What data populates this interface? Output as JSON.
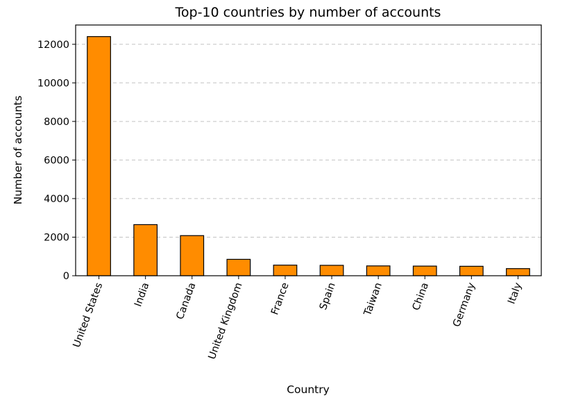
{
  "chart_data": {
    "type": "bar",
    "title": "Top-10 countries by number of accounts",
    "xlabel": "Country",
    "ylabel": "Number of accounts",
    "categories": [
      "United States",
      "India",
      "Canada",
      "United Kingdom",
      "France",
      "Spain",
      "Taiwan",
      "China",
      "Germany",
      "Italy"
    ],
    "values": [
      12400,
      2650,
      2080,
      850,
      550,
      540,
      510,
      500,
      490,
      370
    ],
    "ylim": [
      0,
      13000
    ],
    "yticks": [
      0,
      2000,
      4000,
      6000,
      8000,
      10000,
      12000
    ],
    "ytick_labels": [
      "0",
      "2000",
      "4000",
      "6000",
      "8000",
      "10000",
      "12000"
    ],
    "grid": "y-dashed",
    "bar_color": "#ff8c00",
    "edge_color": "#000000",
    "x_tick_rotation_deg": 70
  }
}
